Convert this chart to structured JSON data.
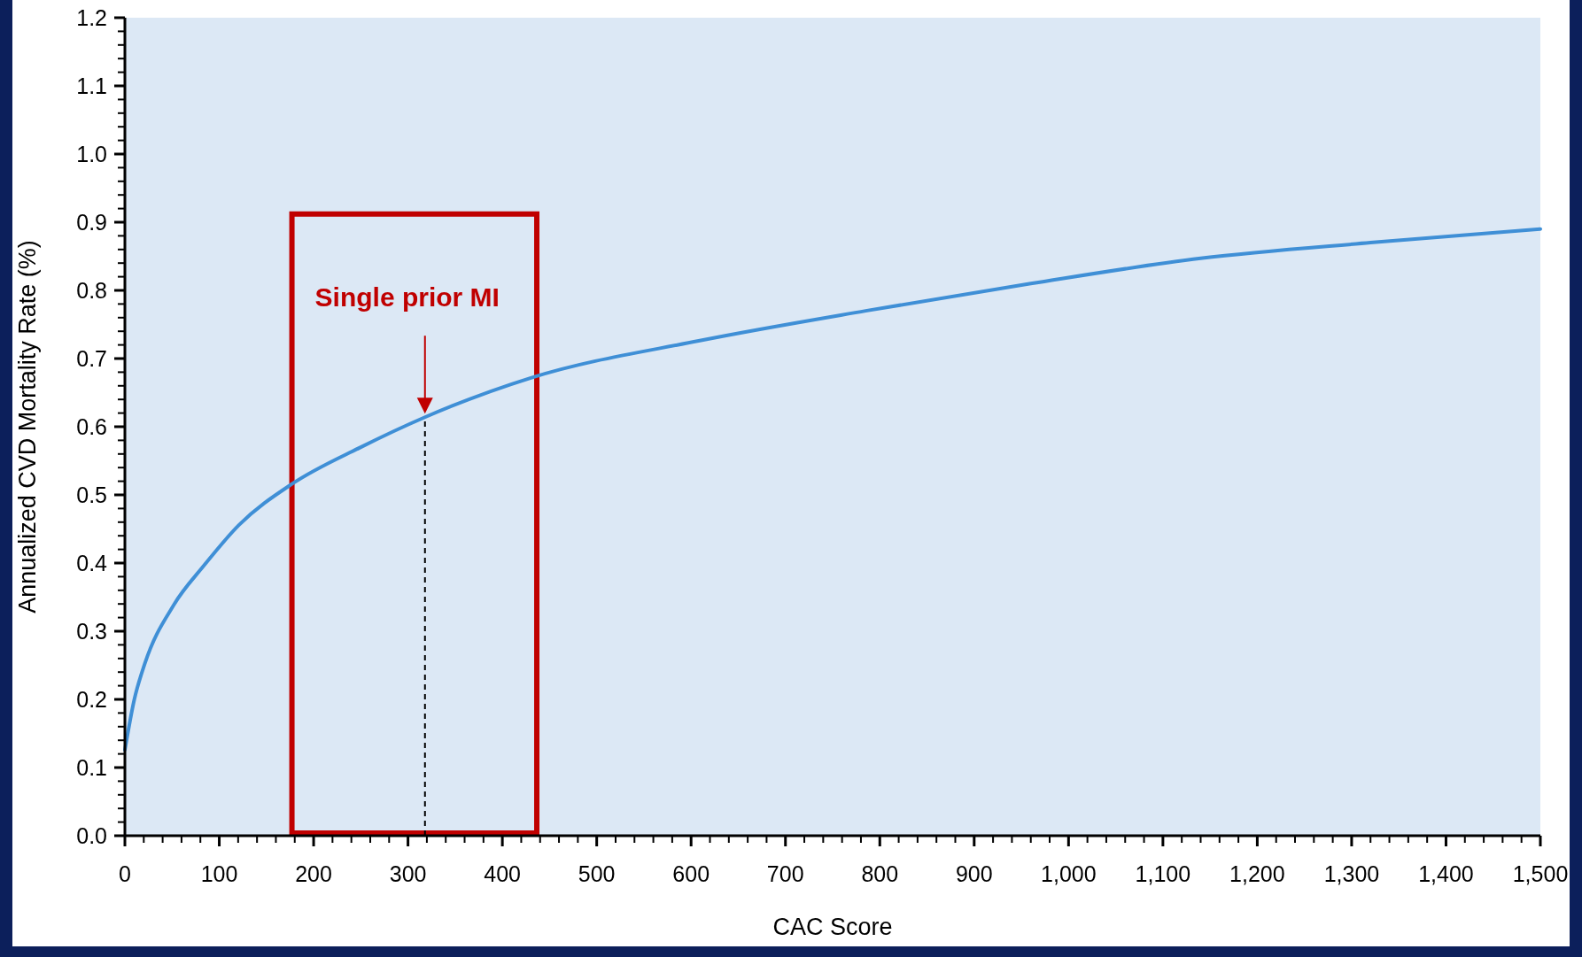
{
  "chart_data": {
    "type": "line",
    "xlabel": "CAC Score",
    "ylabel": "Annualized CVD Mortality Rate (%)",
    "series": [
      {
        "color": "#3f8fd6",
        "x": [
          0,
          10,
          21,
          52,
          83,
          121,
          177,
          250,
          318,
          431,
          608,
          785,
          960,
          1140,
          1320,
          1500
        ],
        "values": [
          0.126,
          0.2,
          0.252,
          0.339,
          0.395,
          0.456,
          0.516,
          0.57,
          0.614,
          0.672,
          0.726,
          0.77,
          0.81,
          0.847,
          0.87,
          0.89
        ]
      }
    ],
    "xlim": [
      0,
      1500
    ],
    "ylim": [
      0,
      1.2
    ],
    "xticks": [
      0,
      100,
      200,
      300,
      400,
      500,
      600,
      700,
      800,
      900,
      {
        "value": 1000,
        "label": "1,000"
      },
      {
        "value": 1100,
        "label": "1,100"
      },
      {
        "value": 1200,
        "label": "1,200"
      },
      {
        "value": 1300,
        "label": "1,300"
      },
      {
        "value": 1400,
        "label": "1,400"
      },
      {
        "value": 1500,
        "label": "1,500"
      }
    ],
    "yticks": [
      {
        "value": 0,
        "label": "0.0"
      },
      0.1,
      0.2,
      0.3,
      0.4,
      0.5,
      0.6,
      0.7,
      0.8,
      0.9,
      {
        "value": 1,
        "label": "1.0"
      },
      1.1,
      1.2
    ],
    "ref_lines": [
      {
        "axis": "x",
        "value": 318,
        "color": "#000000",
        "line_style": "dashed"
      }
    ],
    "annotations": [
      "Single prior MI"
    ],
    "grid": false,
    "marker": "none",
    "line_style": "solid"
  }
}
